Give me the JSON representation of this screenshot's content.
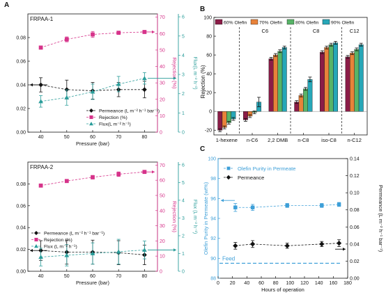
{
  "colors": {
    "black": "#111111",
    "magenta": "#d6338a",
    "teal": "#2a9d9a",
    "olefin_blue": "#3d9fd8",
    "bar_60": "#8b1c47",
    "bar_70": "#e8823a",
    "bar_80": "#58b468",
    "bar_90": "#27a7b8"
  },
  "chart_data": [
    {
      "id": "A1",
      "panel_label": "A",
      "type": "line",
      "title": "FRPAA-1",
      "xlabel": "Pressure (bar)",
      "ylabel_left": "",
      "ylabel_right_1": "Rejection (%)",
      "ylabel_right_2": "Flux(L m⁻² h⁻¹)",
      "xlim": [
        35,
        85
      ],
      "x_ticks": [
        "40",
        "50",
        "60",
        "70",
        "80"
      ],
      "ylim_left": [
        0,
        0.1
      ],
      "y_ticks_left": [
        "0.00",
        "0.02",
        "0.04",
        "0.06",
        "0.08"
      ],
      "ylim_right_1": [
        0,
        70
      ],
      "y_ticks_right_1": [
        "0",
        "10",
        "20",
        "30",
        "40",
        "50",
        "60",
        "70"
      ],
      "ylim_right_2": [
        0,
        6
      ],
      "y_ticks_right_2": [
        "0",
        "1",
        "2",
        "3",
        "4",
        "5",
        "6"
      ],
      "legend": [
        "Permeance (L m⁻² h⁻¹ bar⁻¹)",
        "Rejection (%)",
        "Flux(L m⁻² h⁻¹)"
      ],
      "series": [
        {
          "name": "Permeance (L m⁻² h⁻¹ bar⁻¹)",
          "axis": "left",
          "x": [
            40,
            50,
            60,
            70,
            80
          ],
          "values": [
            0.04,
            0.036,
            0.035,
            0.036,
            0.036
          ],
          "err": [
            0.006,
            0.008,
            0.007,
            0.006,
            0.007
          ]
        },
        {
          "name": "Rejection (%)",
          "axis": "right1",
          "x": [
            40,
            50,
            60,
            70,
            80
          ],
          "values": [
            51.5,
            56.5,
            59.5,
            60.5,
            61.0
          ],
          "err": [
            1.0,
            1.5,
            1.8,
            1.0,
            0.8
          ]
        },
        {
          "name": "Flux(L m⁻² h⁻¹)",
          "axis": "right2",
          "x": [
            40,
            50,
            60,
            70,
            80
          ],
          "values": [
            1.6,
            1.8,
            2.1,
            2.5,
            2.8
          ],
          "err": [
            0.3,
            0.4,
            0.4,
            0.4,
            0.3
          ]
        }
      ]
    },
    {
      "id": "A2",
      "panel_label": "",
      "type": "line",
      "title": "FRPAA-2",
      "xlabel": "Pressure (bar)",
      "ylabel_left": "",
      "ylabel_right_1": "Rejection (%)",
      "ylabel_right_2": "Flux (L m⁻² h⁻¹)",
      "xlim": [
        35,
        85
      ],
      "x_ticks": [
        "40",
        "50",
        "60",
        "70",
        "80"
      ],
      "ylim_left": [
        0,
        0.1
      ],
      "y_ticks_left": [
        "0.00",
        "0.02",
        "0.04",
        "0.06",
        "0.08"
      ],
      "ylim_right_1": [
        0,
        70
      ],
      "y_ticks_right_1": [
        "0",
        "10",
        "20",
        "30",
        "40",
        "50",
        "60",
        "70"
      ],
      "ylim_right_2": [
        0,
        6
      ],
      "y_ticks_right_2": [
        "0",
        "1",
        "2",
        "3",
        "4",
        "5",
        "6"
      ],
      "legend": [
        "Permeance (L m⁻² h⁻¹ bar⁻¹)",
        "Rejection (%)",
        "Flux (L m⁻² h⁻¹)"
      ],
      "series": [
        {
          "name": "Permeance (L m⁻² h⁻¹ bar⁻¹)",
          "axis": "left",
          "x": [
            40,
            50,
            60,
            70,
            80
          ],
          "values": [
            0.019,
            0.0175,
            0.0175,
            0.017,
            0.015
          ],
          "err": [
            0.009,
            0.011,
            0.011,
            0.011,
            0.009
          ]
        },
        {
          "name": "Rejection (%)",
          "axis": "right1",
          "x": [
            40,
            50,
            60,
            70,
            80
          ],
          "values": [
            56.5,
            59.5,
            62.0,
            64.0,
            65.5
          ],
          "err": [
            1.0,
            1.0,
            1.2,
            1.5,
            1.0
          ]
        },
        {
          "name": "Flux (L m⁻² h⁻¹)",
          "axis": "right2",
          "x": [
            40,
            50,
            60,
            70,
            80
          ],
          "values": [
            0.8,
            0.9,
            1.0,
            1.1,
            1.2
          ],
          "err": [
            0.5,
            0.6,
            0.6,
            0.7,
            0.5
          ]
        }
      ]
    },
    {
      "id": "B",
      "panel_label": "B",
      "type": "bar",
      "xlabel": "",
      "ylabel": "Rejection (%)",
      "ylim": [
        -25,
        100
      ],
      "y_ticks": [
        "-20",
        "0",
        "20",
        "40",
        "60",
        "80",
        "100"
      ],
      "categories": [
        "1-hexene",
        "n-C6",
        "2,2 DMB",
        "n-C8",
        "iso-C8",
        "n-C12"
      ],
      "groups": [
        "C6",
        "C8",
        "C12"
      ],
      "legend": [
        "60% Olefin",
        "70% Olefin",
        "80% Olefin",
        "90% Olefin"
      ],
      "series": [
        {
          "name": "60% Olefin",
          "values": [
            -20,
            -9,
            56,
            10,
            63,
            58
          ],
          "err": [
            1.5,
            1.5,
            1.5,
            1.5,
            1.5,
            1.5
          ]
        },
        {
          "name": "70% Olefin",
          "values": [
            -17,
            -5,
            60,
            17,
            68,
            62
          ],
          "err": [
            1.5,
            1.5,
            1.5,
            1.5,
            1.5,
            1.5
          ]
        },
        {
          "name": "80% Olefin",
          "values": [
            -12,
            -1,
            64,
            24,
            71,
            66
          ],
          "err": [
            1.5,
            1.5,
            1.5,
            1.5,
            1.5,
            1.5
          ]
        },
        {
          "name": "90% Olefin",
          "values": [
            -8,
            10,
            68,
            34,
            73,
            71
          ],
          "err": [
            1.5,
            5,
            1.5,
            2.5,
            1.5,
            1.5
          ]
        }
      ]
    },
    {
      "id": "C",
      "panel_label": "C",
      "type": "line",
      "xlabel": "Hours of operation",
      "ylabel_left": "Olefin Purity in Permeate (wt%)",
      "ylabel_right": "Permeance (L m⁻² h⁻¹ bar⁻¹)",
      "xlim": [
        0,
        180
      ],
      "x_ticks": [
        "0",
        "20",
        "40",
        "60",
        "80",
        "100",
        "120",
        "140",
        "160",
        "180"
      ],
      "ylim_left": [
        88,
        100
      ],
      "y_ticks_left": [
        "88",
        "90",
        "92",
        "94",
        "96",
        "98",
        "100"
      ],
      "ylim_right": [
        0,
        0.14
      ],
      "y_ticks_right": [
        "0.00",
        "0.02",
        "0.04",
        "0.06",
        "0.08",
        "0.10",
        "0.12",
        "0.14"
      ],
      "legend": [
        "Olefin Purity in Permeate",
        "Permeance"
      ],
      "annotation": "Feed",
      "feed_level": 89.5,
      "series": [
        {
          "name": "Olefin Purity in Permeate",
          "axis": "left",
          "x": [
            24,
            48,
            96,
            144,
            168
          ],
          "values": [
            95.1,
            95.1,
            95.3,
            95.3,
            95.4
          ],
          "err": [
            0.4,
            0.3,
            0.2,
            0.2,
            0.2
          ]
        },
        {
          "name": "Permeance",
          "axis": "right",
          "x": [
            24,
            48,
            96,
            144,
            168
          ],
          "values": [
            0.038,
            0.04,
            0.038,
            0.04,
            0.041
          ],
          "err": [
            0.004,
            0.004,
            0.003,
            0.003,
            0.004
          ]
        }
      ]
    }
  ]
}
